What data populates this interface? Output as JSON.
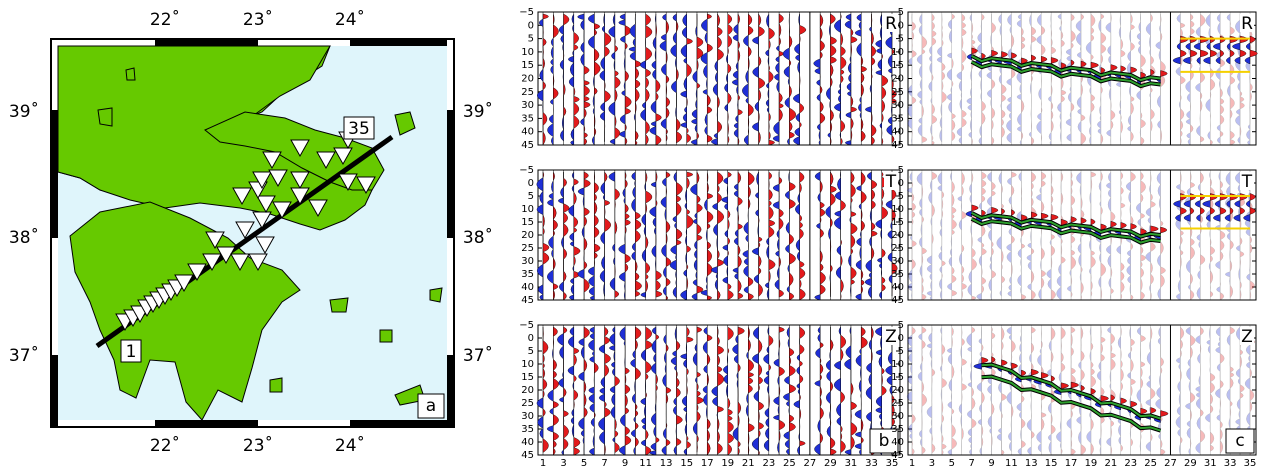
{
  "map": {
    "lon_ticks": [
      "22˚",
      "23˚",
      "24˚"
    ],
    "lat_ticks": [
      "39˚",
      "38˚",
      "37˚"
    ],
    "first_station": "1",
    "last_station": "35",
    "label": "a"
  },
  "seismograms": {
    "time_ticks": [
      "−5",
      "0",
      "5",
      "10",
      "15",
      "20",
      "25",
      "30",
      "35",
      "40",
      "45"
    ],
    "station_ticks": [
      "1",
      "3",
      "5",
      "7",
      "9",
      "11",
      "13",
      "15",
      "17",
      "19",
      "21",
      "23",
      "25",
      "27",
      "29",
      "31",
      "33",
      "35"
    ],
    "components": [
      "R",
      "T",
      "Z"
    ],
    "panel_labels": [
      "b",
      "c"
    ]
  }
}
